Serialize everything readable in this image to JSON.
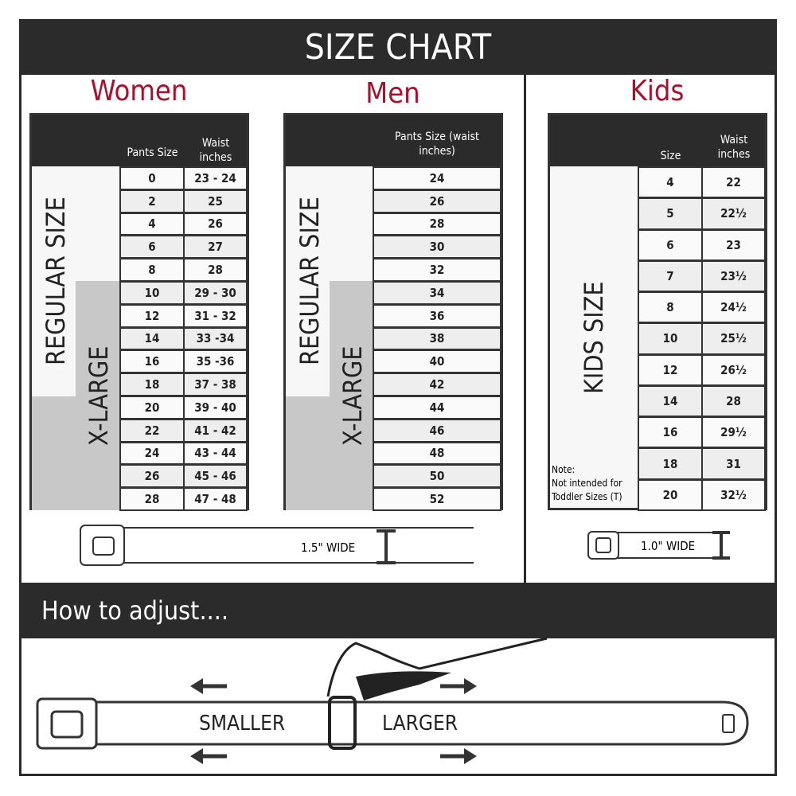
{
  "title": "SIZE CHART",
  "women": {
    "heading": "Women",
    "col1": "Pants Size",
    "col2": "Waist inches",
    "regular": "REGULAR SIZE",
    "xlarge": "X-LARGE",
    "rows": [
      [
        "0",
        "23 - 24"
      ],
      [
        "2",
        "25"
      ],
      [
        "4",
        "26"
      ],
      [
        "6",
        "27"
      ],
      [
        "8",
        "28"
      ],
      [
        "10",
        "29 - 30"
      ],
      [
        "12",
        "31 - 32"
      ],
      [
        "14",
        "33 -34"
      ],
      [
        "16",
        "35 -36"
      ],
      [
        "18",
        "37 - 38"
      ],
      [
        "20",
        "39 - 40"
      ],
      [
        "22",
        "41 - 42"
      ],
      [
        "24",
        "43 - 44"
      ],
      [
        "26",
        "45 - 46"
      ],
      [
        "28",
        "47 - 48"
      ]
    ],
    "belt_label": "1.5\" WIDE"
  },
  "men": {
    "heading": "Men",
    "col1": "Pants Size (waist inches)",
    "regular": "REGULAR SIZE",
    "xlarge": "X-LARGE",
    "rows": [
      "24",
      "26",
      "28",
      "30",
      "32",
      "34",
      "36",
      "38",
      "40",
      "42",
      "44",
      "46",
      "48",
      "50",
      "52"
    ]
  },
  "kids": {
    "heading": "Kids",
    "col1": "Size",
    "col2": "Waist inches",
    "label": "KIDS SIZE",
    "note_title": "Note:",
    "note": "Not intended for Toddler Sizes (T)",
    "rows": [
      [
        "4",
        "22"
      ],
      [
        "5",
        "22½"
      ],
      [
        "6",
        "23"
      ],
      [
        "7",
        "23½"
      ],
      [
        "8",
        "24½"
      ],
      [
        "10",
        "25½"
      ],
      [
        "12",
        "26½"
      ],
      [
        "14",
        "28"
      ],
      [
        "16",
        "29½"
      ],
      [
        "18",
        "31"
      ],
      [
        "20",
        "32½"
      ]
    ],
    "belt_label": "1.0\" WIDE"
  },
  "adjust": {
    "heading": "How to adjust....",
    "smaller": "SMALLER",
    "larger": "LARGER"
  },
  "colors": {
    "dark": "#2b2b2b",
    "accent": "#a8102e",
    "xlarge_fill": "#c8c8c8"
  }
}
